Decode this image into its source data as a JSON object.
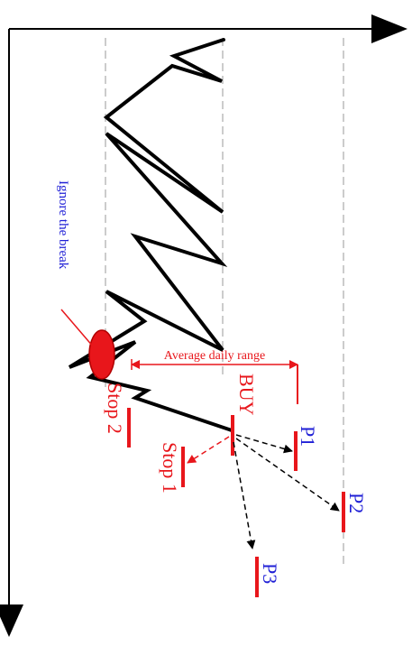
{
  "labels": {
    "ignore_break": "Ignore the break",
    "average_daily_range": "Average daily range",
    "buy": "BUY",
    "stop1": "Stop 1",
    "stop2": "Stop 2",
    "p1": "P1",
    "p2": "P2",
    "p3": "P3"
  },
  "colors": {
    "price_line": "#000000",
    "axis": "#000000",
    "guide_line": "#9a9a9a",
    "red": "#e8161b",
    "blue": "#1f1fd6",
    "black_arrow": "#000000"
  },
  "icons": {
    "axis_arrow": "arrow-right-icon",
    "axis_arrow_down": "arrow-down-icon",
    "highlight": "ellipse-marker"
  }
}
